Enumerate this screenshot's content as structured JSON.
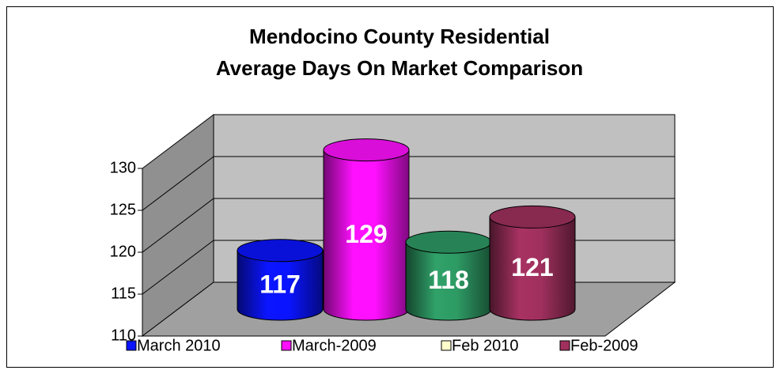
{
  "chart_data": {
    "type": "cylinder",
    "title": [
      "Mendocino County Residential",
      "Average Days On Market Comparison"
    ],
    "series": [
      {
        "name": "March 2010",
        "color": "#0a14ff",
        "swatch": "#0a14ff",
        "values": [
          117
        ]
      },
      {
        "name": "March-2009",
        "color": "#ff10ff",
        "swatch": "#ff10ff",
        "values": [
          129
        ]
      },
      {
        "name": "Feb 2010",
        "color": "#2e9a64",
        "swatch": "#ffffcc",
        "values": [
          118
        ]
      },
      {
        "name": "Feb-2009",
        "color": "#a0305e",
        "swatch": "#a0305e",
        "values": [
          121
        ]
      }
    ],
    "ylim": [
      110,
      130
    ],
    "yticks": [
      110,
      115,
      120,
      125,
      130
    ],
    "grid": true,
    "legend": "bottom"
  }
}
